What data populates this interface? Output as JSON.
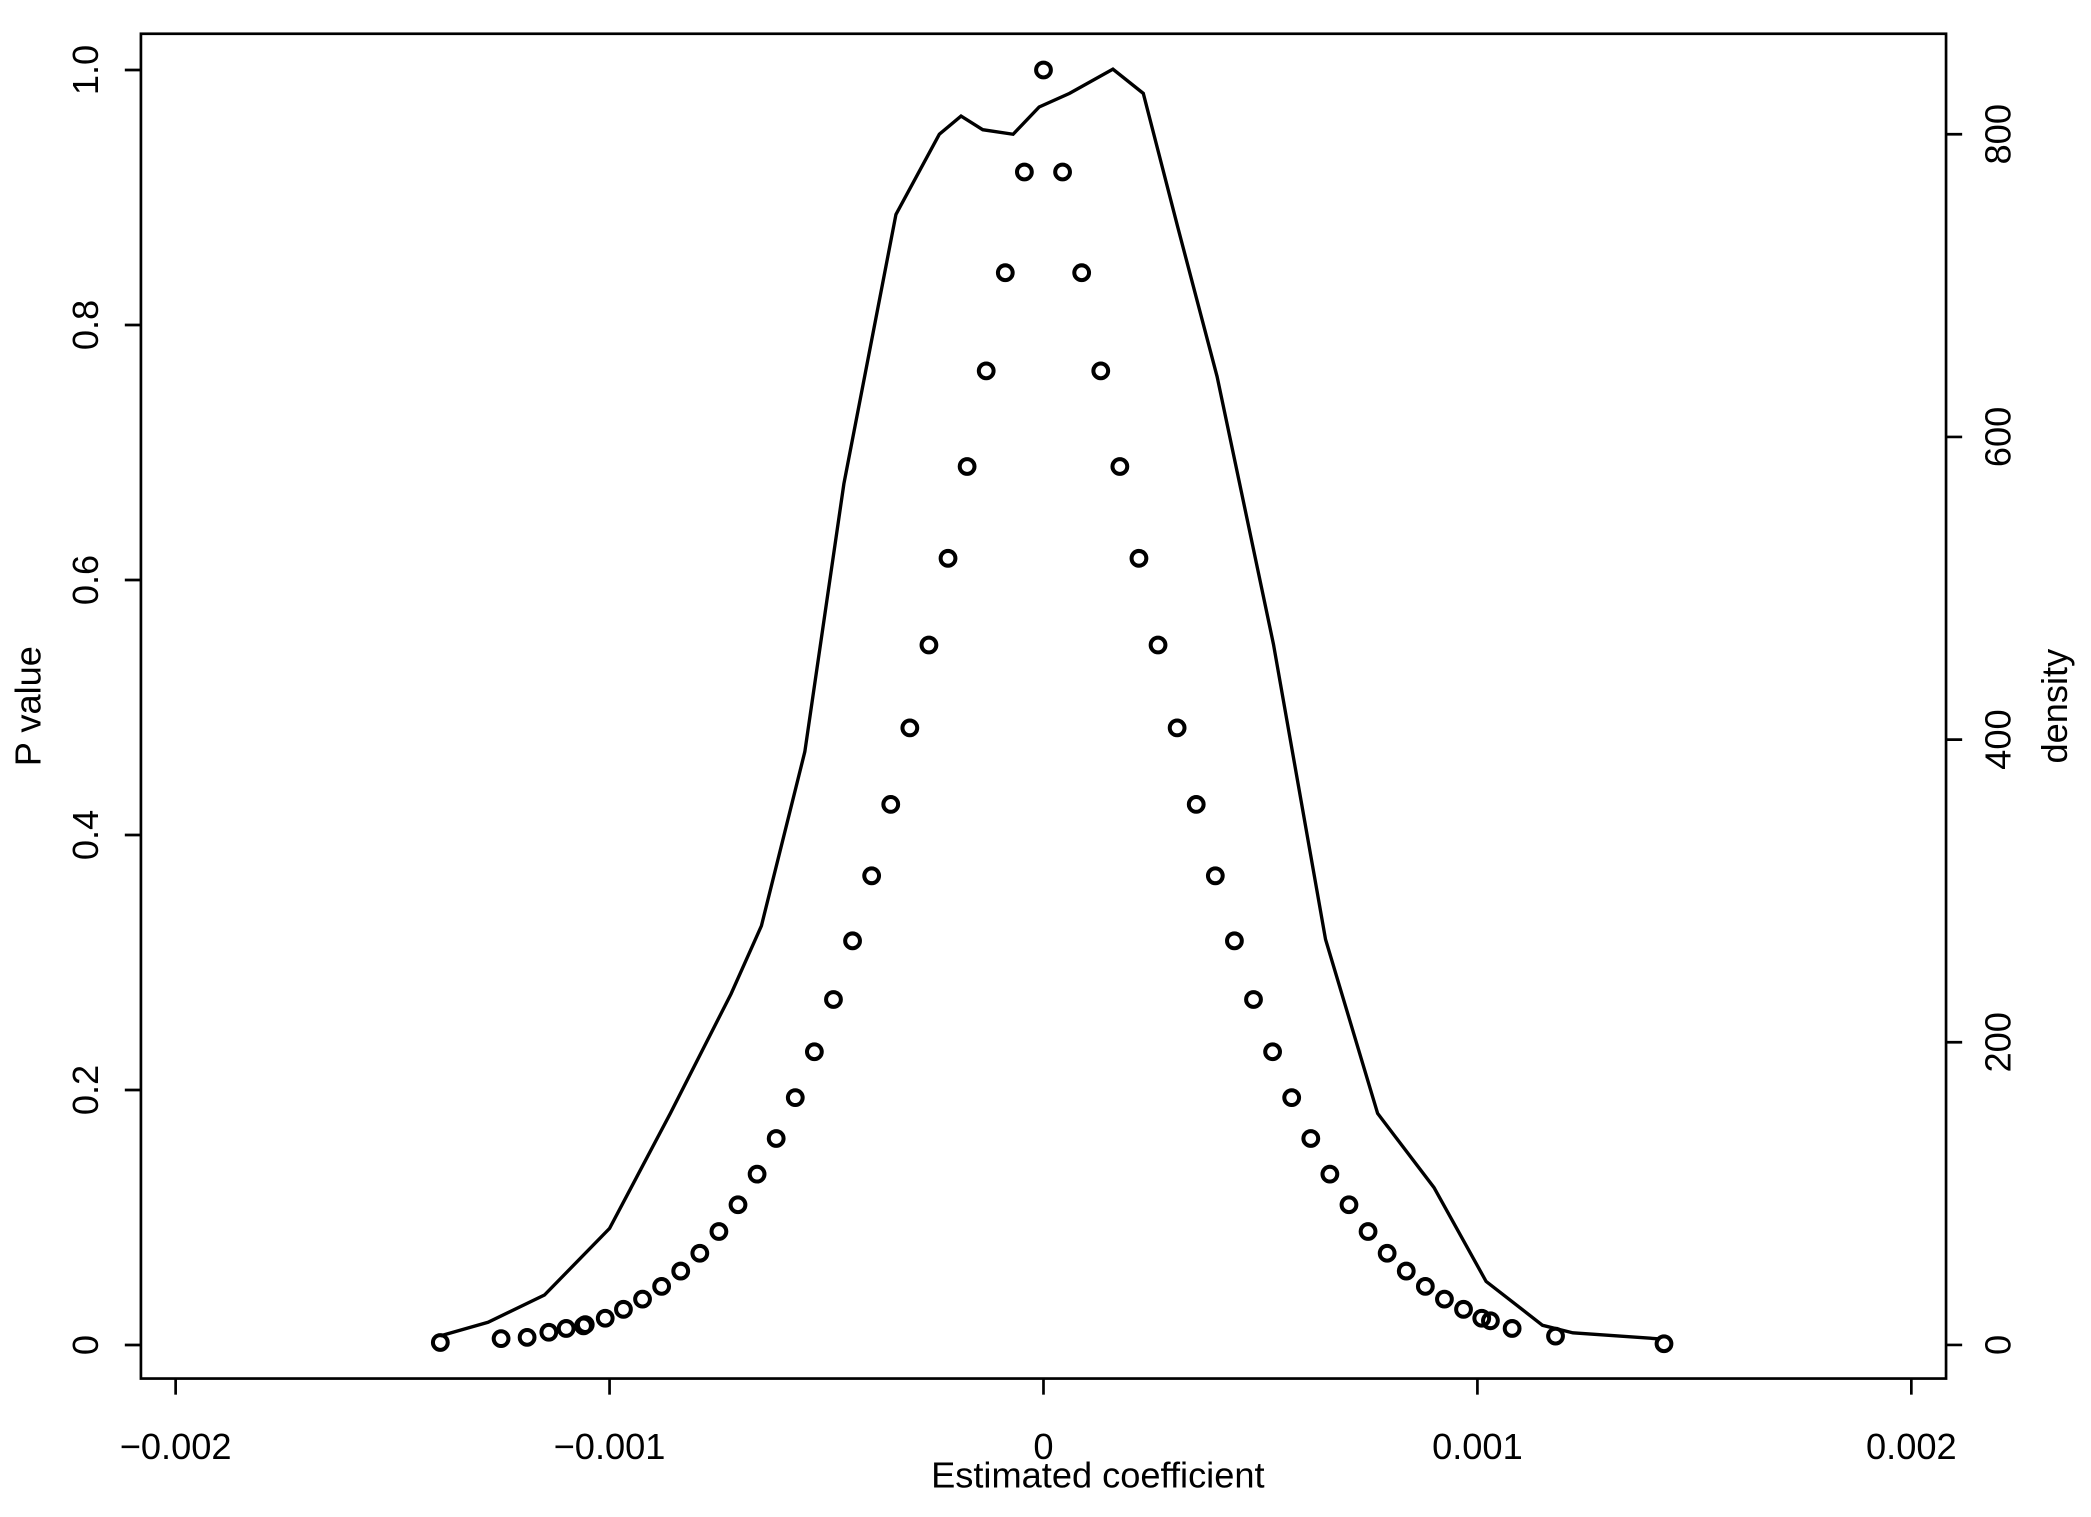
{
  "chart_data": {
    "type": "scatter",
    "x_label": "Estimated coefficient",
    "y_label": "P value",
    "y2_label": "density",
    "xlim": [
      -0.00208,
      0.00208
    ],
    "ylim": [
      -0.0263,
      1.0284
    ],
    "y2lim": [
      -22.2,
      866.4
    ],
    "xticks": [
      {
        "value": -0.002,
        "label": "−0.002"
      },
      {
        "value": -0.001,
        "label": "−0.001"
      },
      0,
      0.001,
      0.002
    ],
    "yticks": [
      0,
      0.2,
      0.4,
      0.6,
      0.8,
      {
        "value": 1.0,
        "label": "1.0"
      }
    ],
    "y2ticks": [
      0,
      200,
      400,
      600,
      800
    ],
    "series": [
      {
        "type": "scatter",
        "color": "#000000",
        "x": [
          -0.00139,
          -0.00125,
          -0.00119,
          -0.00114,
          -0.0011,
          -0.00106,
          -0.001056,
          -0.00101,
          -0.000968,
          -0.000924,
          -0.00088,
          -0.000836,
          -0.000792,
          -0.000748,
          -0.000704,
          -0.00066,
          -0.000616,
          -0.000572,
          -0.000528,
          -0.000484,
          -0.00044,
          -0.000396,
          -0.000352,
          -0.000308,
          -0.000264,
          -0.00022,
          -0.000176,
          -0.000132,
          -8.8e-05,
          -4.4e-05,
          0,
          4.4e-05,
          8.8e-05,
          0.000132,
          0.000176,
          0.00022,
          0.000264,
          0.000308,
          0.000352,
          0.000396,
          0.00044,
          0.000484,
          0.000528,
          0.000572,
          0.000616,
          0.00066,
          0.000704,
          0.000748,
          0.000792,
          0.000836,
          0.00088,
          0.000924,
          0.000968,
          0.00101,
          0.00103,
          0.00108,
          0.00118,
          0.00143
        ],
        "values": [
          0.002,
          0.005,
          0.006,
          0.01,
          0.013,
          0.015,
          0.016,
          0.021,
          0.028,
          0.036,
          0.046,
          0.058,
          0.072,
          0.089,
          0.11,
          0.134,
          0.162,
          0.194,
          0.23,
          0.271,
          0.317,
          0.368,
          0.424,
          0.484,
          0.549,
          0.617,
          0.689,
          0.764,
          0.841,
          0.92,
          1.0,
          0.92,
          0.841,
          0.764,
          0.689,
          0.617,
          0.549,
          0.484,
          0.424,
          0.368,
          0.317,
          0.271,
          0.23,
          0.194,
          0.162,
          0.134,
          0.11,
          0.089,
          0.072,
          0.058,
          0.046,
          0.036,
          0.028,
          0.021,
          0.019,
          0.013,
          0.007,
          0.001
        ]
      },
      {
        "type": "line",
        "axis": "y2",
        "color": "#000000",
        "x": [
          -0.00139,
          -0.00128,
          -0.00115,
          -0.001,
          -0.00086,
          -0.00072,
          -0.00065,
          -0.00055,
          -0.00046,
          -0.00034,
          -0.00024,
          -0.00019,
          -0.00014,
          -7e-05,
          -1e-05,
          6e-05,
          0.00016,
          0.00023,
          0.00031,
          0.0004,
          0.00053,
          0.00065,
          0.00077,
          0.0009,
          0.00102,
          0.00115,
          0.00122,
          0.00142
        ],
        "values": [
          6,
          15,
          33,
          77,
          153,
          232,
          277,
          392,
          569,
          747,
          800,
          812,
          803,
          800,
          818,
          827,
          843,
          827,
          738,
          640,
          463,
          268,
          153,
          104,
          42,
          13,
          8,
          4
        ]
      }
    ]
  }
}
